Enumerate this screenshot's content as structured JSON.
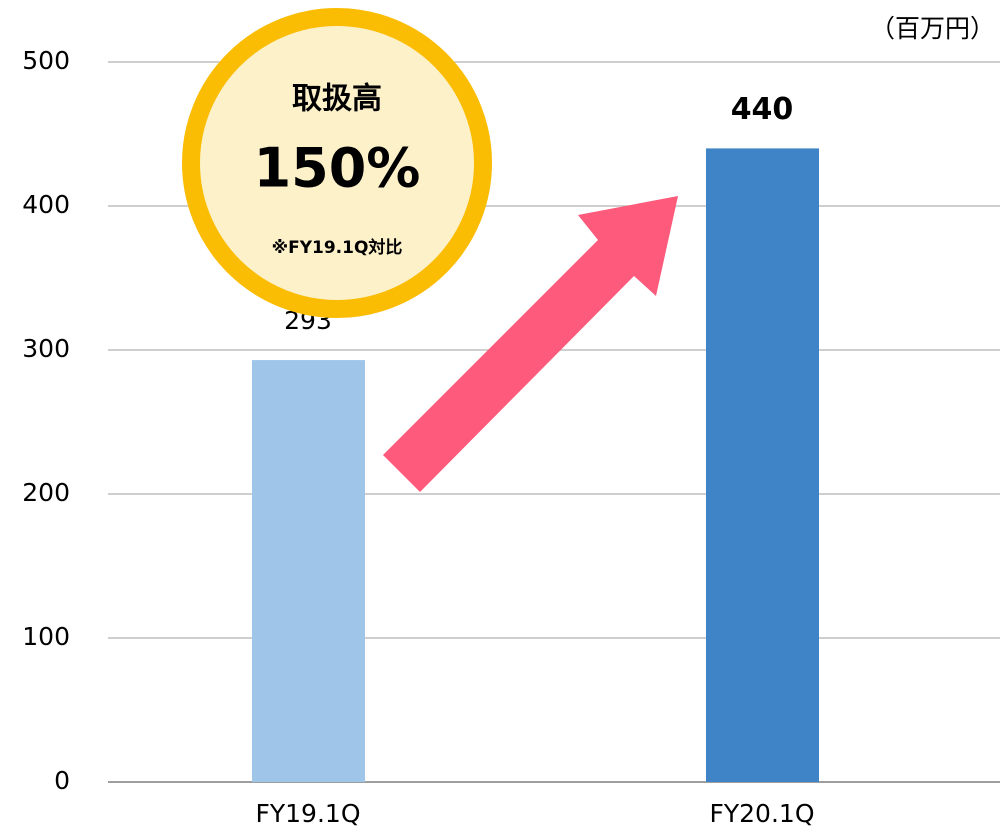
{
  "chart_data": {
    "type": "bar",
    "unit_label": "（百万円）",
    "categories": [
      "FY19.1Q",
      "FY20.1Q"
    ],
    "values": [
      293,
      440
    ],
    "colors": [
      "#9fc5e8",
      "#3f84c6"
    ],
    "ylim": [
      0,
      500
    ],
    "yticks": [
      0,
      100,
      200,
      300,
      400,
      500
    ],
    "grid": true,
    "annotations": [
      "取扱高",
      "150%",
      "※FY19.1Q対比"
    ]
  }
}
